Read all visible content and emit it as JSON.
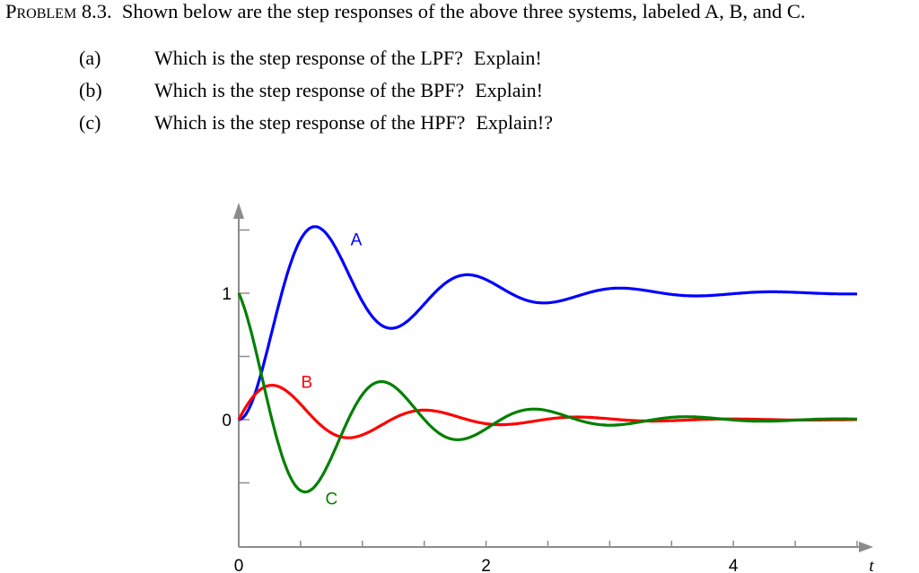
{
  "problem": {
    "label": "Problem",
    "number": "8.3.",
    "statement": "Shown below are the step responses of the above three systems, labeled A, B, and C."
  },
  "questions": [
    {
      "letter": "(a)",
      "text": "Which is the step response of the LPF?",
      "suffix": "Explain!"
    },
    {
      "letter": "(b)",
      "text": "Which is the step response of the BPF?",
      "suffix": "Explain!"
    },
    {
      "letter": "(c)",
      "text": "Which is the step response of the HPF?",
      "suffix": "Explain!?"
    }
  ],
  "chart_data": {
    "type": "line",
    "title": "",
    "xlabel": "t",
    "ylabel": "",
    "xlim": [
      0,
      5
    ],
    "ylim": [
      -1,
      1.6
    ],
    "x_tick_labels": [
      {
        "value": 0,
        "label": "0"
      },
      {
        "value": 2,
        "label": "2"
      },
      {
        "value": 4,
        "label": "4"
      }
    ],
    "x_minor_ticks": [
      0.5,
      1,
      1.5,
      2,
      2.5,
      3,
      3.5,
      4,
      4.5,
      5
    ],
    "y_tick_labels": [
      {
        "value": 0,
        "label": "0"
      },
      {
        "value": 1,
        "label": "1"
      }
    ],
    "y_minor_ticks": [
      -0.5,
      0,
      0.5,
      1,
      1.5
    ],
    "grid": false,
    "legend": "inline labels near curves",
    "model": {
      "zeta": 0.2,
      "omega_n": 5.2
    },
    "series": [
      {
        "name": "A",
        "color": "#0000ff",
        "kind": "lowpass",
        "label_pos": {
          "t": 0.95,
          "v": 1.43
        },
        "description": "Starts at 0, overshoots to ~1.52 at t~0.62, undershoots to ~0.71 at t~1.25, settles at 1",
        "approx_points": [
          [
            0,
            0
          ],
          [
            0.3,
            0.85
          ],
          [
            0.62,
            1.52
          ],
          [
            1.0,
            1.0
          ],
          [
            1.25,
            0.71
          ],
          [
            1.85,
            1.14
          ],
          [
            2.45,
            0.92
          ],
          [
            3.1,
            1.03
          ],
          [
            3.7,
            0.99
          ],
          [
            5,
            1.0
          ]
        ]
      },
      {
        "name": "B",
        "color": "#ff0000",
        "kind": "bandpass",
        "label_pos": {
          "t": 0.55,
          "v": 0.3
        },
        "description": "Starts at 0, peaks ~0.28 at t~0.28, dips ~-0.17 at t~0.9, decays to 0",
        "approx_points": [
          [
            0,
            0
          ],
          [
            0.28,
            0.29
          ],
          [
            0.9,
            -0.17
          ],
          [
            1.5,
            0.08
          ],
          [
            2.1,
            -0.04
          ],
          [
            2.7,
            0.02
          ],
          [
            5,
            0.0
          ]
        ]
      },
      {
        "name": "C",
        "color": "#008000",
        "kind": "highpass",
        "label_pos": {
          "t": 0.75,
          "v": -0.62
        },
        "description": "Starts at 1, drops to ~-0.58 at t~0.55, peaks ~0.29 at t~1.2, dips ~-0.17 at t~1.85, decays to 0",
        "approx_points": [
          [
            0,
            1.0
          ],
          [
            0.2,
            0.3
          ],
          [
            0.55,
            -0.58
          ],
          [
            1.2,
            0.29
          ],
          [
            1.85,
            -0.17
          ],
          [
            2.45,
            0.08
          ],
          [
            3.1,
            -0.04
          ],
          [
            5,
            0.0
          ]
        ]
      }
    ]
  },
  "axis_color": "#8c8c8c"
}
